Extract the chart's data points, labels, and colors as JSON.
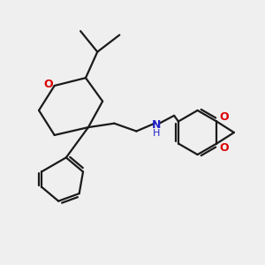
{
  "bg_color": "#efefef",
  "bond_color": "#1a1a1a",
  "o_color": "#dd0000",
  "n_color": "#2222cc",
  "line_width": 1.6,
  "figsize": [
    3.0,
    3.0
  ],
  "dpi": 100,
  "xlim": [
    0,
    10
  ],
  "ylim": [
    0,
    10
  ]
}
